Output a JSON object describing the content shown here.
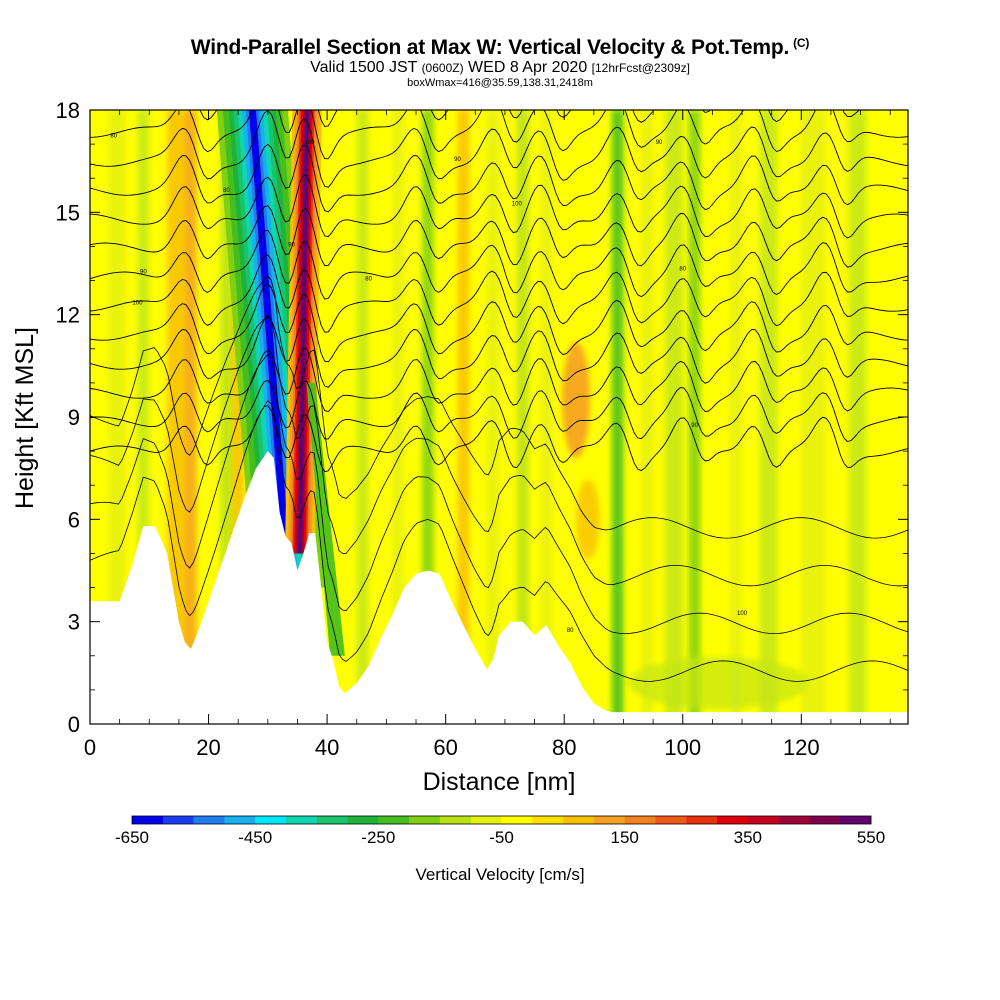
{
  "header": {
    "title": "Wind-Parallel Section at Max W: Vertical Velocity & Pot.Temp.",
    "copyright": "(C)",
    "valid_prefix": "Valid 1500 JST",
    "valid_utc": "(0600Z)",
    "valid_date": "WED 8 Apr 2020",
    "forecast": "[12hrFcst@2309z]",
    "box": "boxWmax=416@35.59,138.31,2418m"
  },
  "chart_data": {
    "type": "heatmap",
    "xlabel": "Distance [nm]",
    "ylabel": "Height [Kft MSL]",
    "xlim": [
      0,
      138
    ],
    "ylim": [
      0,
      18
    ],
    "x_ticks": [
      "0",
      "20",
      "40",
      "60",
      "80",
      "100",
      "120"
    ],
    "y_ticks": [
      "0",
      "3",
      "6",
      "9",
      "12",
      "15",
      "18"
    ],
    "colorbar_label": "Vertical Velocity [cm/s]",
    "colorbar_ticks": [
      "-650",
      "-450",
      "-250",
      "-50",
      "150",
      "350",
      "550"
    ],
    "colorbar_colors": [
      "#0000ee",
      "#1a3cf5",
      "#1e7bf0",
      "#18b0f0",
      "#00e8ff",
      "#10d6b0",
      "#19c46d",
      "#1fb33a",
      "#45be1f",
      "#7fd012",
      "#b9e214",
      "#e6f010",
      "#ffff00",
      "#fbe000",
      "#f8c000",
      "#f6a021",
      "#f48020",
      "#f05818",
      "#e8300f",
      "#e0000a",
      "#c8001e",
      "#a00038",
      "#800050",
      "#600070"
    ],
    "terrain_x": [
      0,
      5,
      7,
      9,
      11,
      13,
      15,
      16,
      17,
      18,
      20,
      22,
      24,
      26,
      28,
      30,
      31,
      32,
      33,
      34,
      35,
      36,
      37,
      38,
      39,
      40,
      41,
      42,
      43,
      45,
      47,
      49,
      51,
      53,
      55,
      57,
      59,
      61,
      63,
      65,
      67,
      68,
      69,
      71,
      73,
      75,
      77,
      79,
      81,
      83,
      85,
      87,
      88,
      90,
      95,
      100,
      105,
      110,
      115,
      120,
      125,
      130,
      135,
      138
    ],
    "terrain_kft": [
      3.6,
      3.6,
      4.6,
      5.8,
      5.8,
      5.0,
      3.0,
      2.4,
      2.2,
      2.6,
      3.6,
      4.6,
      5.6,
      6.6,
      7.5,
      8.0,
      7.8,
      6.2,
      5.5,
      5.3,
      4.5,
      5.0,
      5.6,
      5.6,
      4.0,
      2.4,
      1.9,
      1.1,
      0.9,
      1.2,
      1.7,
      2.5,
      3.2,
      4.0,
      4.4,
      4.5,
      4.4,
      3.6,
      2.9,
      2.2,
      1.6,
      1.9,
      2.6,
      3.0,
      3.0,
      2.6,
      2.9,
      2.3,
      1.8,
      1.1,
      0.6,
      0.4,
      0.35,
      0.35,
      0.35,
      0.35,
      0.35,
      0.35,
      0.35,
      0.35,
      0.35,
      0.35,
      0.35,
      0.35
    ],
    "updraft_core_x": 36,
    "updraft_max_cms": 416,
    "isentrope_labels": [
      "80",
      "90",
      "100"
    ],
    "grid": false,
    "legend": "bottom colorbar"
  }
}
